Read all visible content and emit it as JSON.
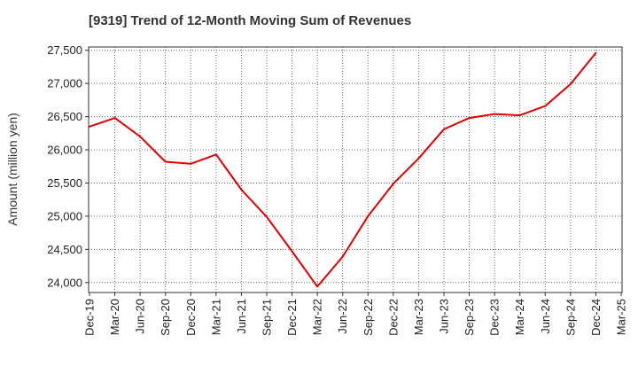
{
  "chart_data": {
    "type": "line",
    "title": "[9319]  Trend of 12-Month Moving Sum of Revenues",
    "xlabel": "",
    "ylabel": "Amount (million yen)",
    "x": [
      "Dec-19",
      "Mar-20",
      "Jun-20",
      "Sep-20",
      "Dec-20",
      "Mar-21",
      "Jun-21",
      "Sep-21",
      "Dec-21",
      "Mar-22",
      "Jun-22",
      "Sep-22",
      "Dec-22",
      "Mar-23",
      "Jun-23",
      "Sep-23",
      "Dec-23",
      "Mar-24",
      "Jun-24",
      "Sep-24",
      "Dec-24",
      "Mar-25"
    ],
    "yticks": [
      "24,000",
      "24,500",
      "25,000",
      "25,500",
      "26,000",
      "26,500",
      "27,000",
      "27,500"
    ],
    "ylim": [
      23850,
      27550
    ],
    "series": [
      {
        "values": [
          26350,
          26480,
          26200,
          25820,
          25790,
          25930,
          25400,
          24990,
          24470,
          23940,
          24390,
          25000,
          25490,
          25870,
          26310,
          26480,
          26540,
          26520,
          26660,
          26990,
          27460,
          null
        ]
      }
    ],
    "grid": true,
    "legend": "none",
    "line_color": "#e00000"
  }
}
